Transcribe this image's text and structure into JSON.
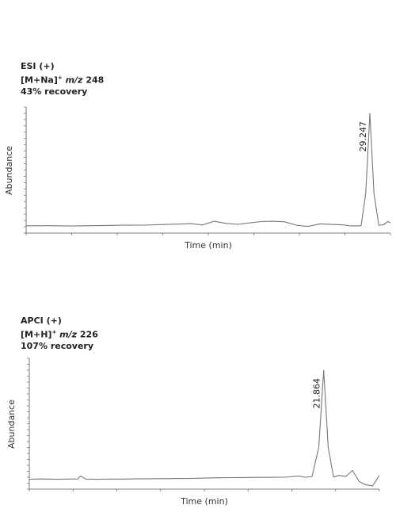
{
  "chart_data": [
    {
      "type": "line",
      "ion_mode": "ESI (+)",
      "ion_prefix": "[M+Na]",
      "ion_charge": "+",
      "ion_mz_label": "m/z",
      "ion_mz_value": "248",
      "recovery": "43% recovery",
      "xlabel": "Time (min)",
      "ylabel": "Abundance",
      "grid": false,
      "peak_label": "29.247",
      "peak_x": 29.247,
      "xlim": [
        0,
        31
      ],
      "ylim": [
        0,
        100
      ],
      "series": [
        {
          "x": [
            0,
            2,
            4,
            6,
            8,
            10,
            12,
            13,
            14,
            15,
            16,
            17,
            18,
            19,
            20,
            21,
            22,
            23,
            24,
            25,
            26,
            27,
            27.5,
            28,
            28.5,
            28.9,
            29.247,
            29.6,
            30,
            30.4,
            30.8,
            31
          ],
          "values": [
            1.5,
            1.6,
            1.3,
            1.7,
            2.0,
            2.1,
            2.7,
            3.0,
            3.4,
            2.2,
            5.5,
            3.6,
            2.8,
            4.0,
            5.2,
            5.5,
            5.0,
            2.0,
            1.0,
            3.2,
            2.7,
            2.3,
            1.5,
            1.3,
            1.6,
            30,
            100,
            30,
            2.0,
            2.4,
            5.3,
            4.0
          ]
        }
      ]
    },
    {
      "type": "line",
      "ion_mode": "APCI (+)",
      "ion_prefix": "[M+H]",
      "ion_charge": "+",
      "ion_mz_label": "m/z",
      "ion_mz_value": "226",
      "recovery": "107% recovery",
      "xlabel": "Time (min)",
      "ylabel": "Abundance",
      "grid": false,
      "peak_label": "21.864",
      "peak_x": 21.864,
      "xlim": [
        0,
        26
      ],
      "ylim": [
        0,
        100
      ],
      "series": [
        {
          "x": [
            0,
            1,
            2,
            3,
            3.6,
            3.8,
            4.2,
            5,
            6,
            7,
            8,
            9,
            10,
            11,
            12,
            13,
            14,
            15,
            16,
            17,
            18,
            19,
            20,
            20.5,
            21.0,
            21.5,
            21.864,
            22.2,
            22.6,
            23.0,
            23.5,
            24,
            24.5,
            25,
            25.5,
            26
          ],
          "values": [
            1.0,
            1.3,
            1.0,
            1.2,
            1.3,
            4.0,
            1.2,
            1.0,
            1.2,
            1.2,
            1.4,
            1.5,
            1.6,
            1.7,
            1.8,
            2.1,
            2.4,
            2.5,
            2.6,
            2.7,
            2.8,
            2.9,
            4.0,
            2.9,
            3.5,
            30,
            100,
            30,
            3.0,
            4.5,
            3.5,
            9.0,
            -1.0,
            -4.0,
            -5.0,
            4.5
          ]
        }
      ]
    }
  ]
}
